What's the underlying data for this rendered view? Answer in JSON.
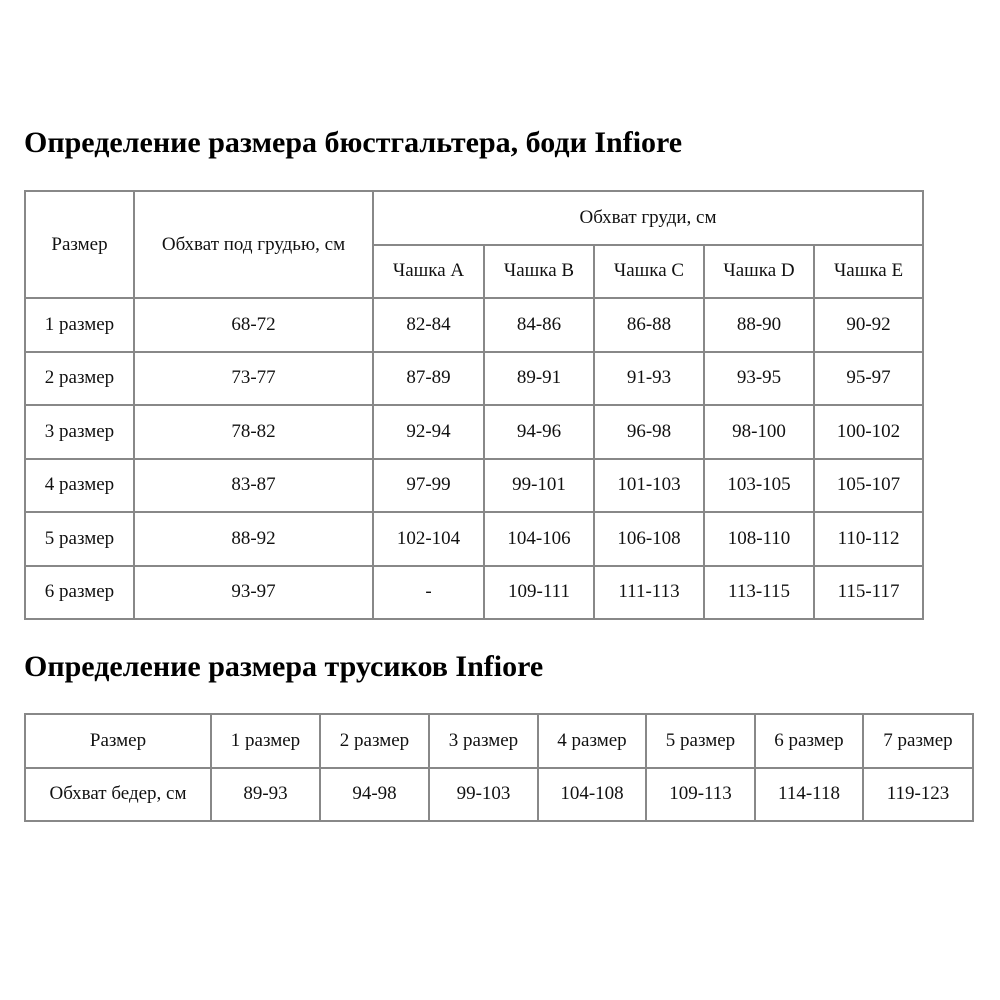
{
  "bra_section": {
    "title": "Определение размера бюстгальтера, боди Infiore",
    "headers": {
      "size": "Размер",
      "underbust": "Обхват под грудью, см",
      "bust": "Обхват груди, см",
      "cups": [
        "Чашка A",
        "Чашка B",
        "Чашка C",
        "Чашка D",
        "Чашка E"
      ]
    },
    "rows": [
      {
        "size": "1 размер",
        "underbust": "68-72",
        "cups": [
          "82-84",
          "84-86",
          "86-88",
          "88-90",
          "90-92"
        ]
      },
      {
        "size": "2 размер",
        "underbust": "73-77",
        "cups": [
          "87-89",
          "89-91",
          "91-93",
          "93-95",
          "95-97"
        ]
      },
      {
        "size": "3 размер",
        "underbust": "78-82",
        "cups": [
          "92-94",
          "94-96",
          "96-98",
          "98-100",
          "100-102"
        ]
      },
      {
        "size": "4 размер",
        "underbust": "83-87",
        "cups": [
          "97-99",
          "99-101",
          "101-103",
          "103-105",
          "105-107"
        ]
      },
      {
        "size": "5 размер",
        "underbust": "88-92",
        "cups": [
          "102-104",
          "104-106",
          "106-108",
          "108-110",
          "110-112"
        ]
      },
      {
        "size": "6 размер",
        "underbust": "93-97",
        "cups": [
          "-",
          "109-111",
          "111-113",
          "113-115",
          "115-117"
        ]
      }
    ]
  },
  "panties_section": {
    "title": "Определение размера трусиков Infiore",
    "size_label": "Размер",
    "hip_label": "Обхват бедер, см",
    "sizes": [
      "1 размер",
      "2 размер",
      "3 размер",
      "4 размер",
      "5 размер",
      "6 размер",
      "7 размер"
    ],
    "hips": [
      "89-93",
      "94-98",
      "99-103",
      "104-108",
      "109-113",
      "114-118",
      "119-123"
    ]
  }
}
